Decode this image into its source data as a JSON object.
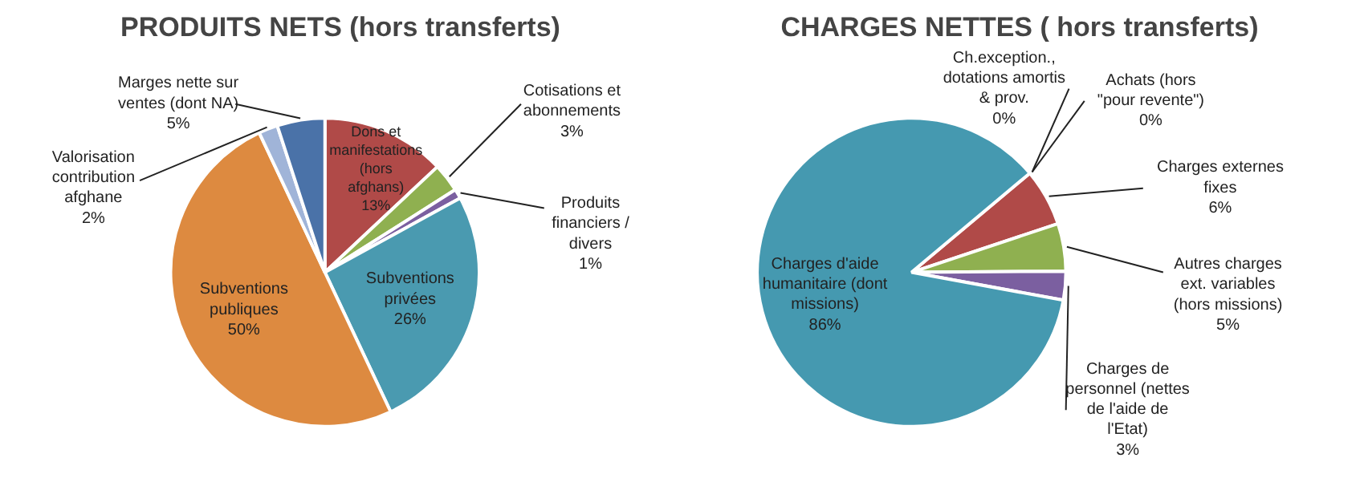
{
  "chart_data": [
    {
      "type": "pie",
      "title": "PRODUITS NETS (hors transferts)",
      "categories": [
        "Dons et manifestations (hors afghans)",
        "Cotisations et abonnements",
        "Produits financiers / divers",
        "Subventions privées",
        "Subventions publiques",
        "Valorisation contribution afghane",
        "Marges nette sur ventes (dont NA)"
      ],
      "values": [
        13,
        3,
        1,
        26,
        50,
        2,
        5
      ],
      "value_labels": [
        "13%",
        "3%",
        "1%",
        "26%",
        "50%",
        "2%",
        "5%"
      ],
      "colors": [
        "#b04a48",
        "#8fb050",
        "#7b5fa0",
        "#4a9ab0",
        "#dd8a40",
        "#a0b4d8",
        "#4a72a8"
      ]
    },
    {
      "type": "pie",
      "title": "CHARGES NETTES ( hors transferts)",
      "categories": [
        "Ch.exception., dotations amortis & prov.",
        "Achats (hors \"pour revente\")",
        "Charges externes fixes",
        "Autres charges ext. variables (hors missions)",
        "Charges de personnel (nettes de l'aide de l'Etat)",
        "Charges d'aide humanitaire (dont missions)"
      ],
      "values": [
        0,
        0,
        6,
        5,
        3,
        86
      ],
      "value_labels": [
        "0%",
        "0%",
        "6%",
        "5%",
        "3%",
        "86%"
      ],
      "colors": [
        "#4a72a8",
        "#b0b0b0",
        "#b04a48",
        "#8fb050",
        "#7b5fa0",
        "#4599b0"
      ]
    }
  ]
}
